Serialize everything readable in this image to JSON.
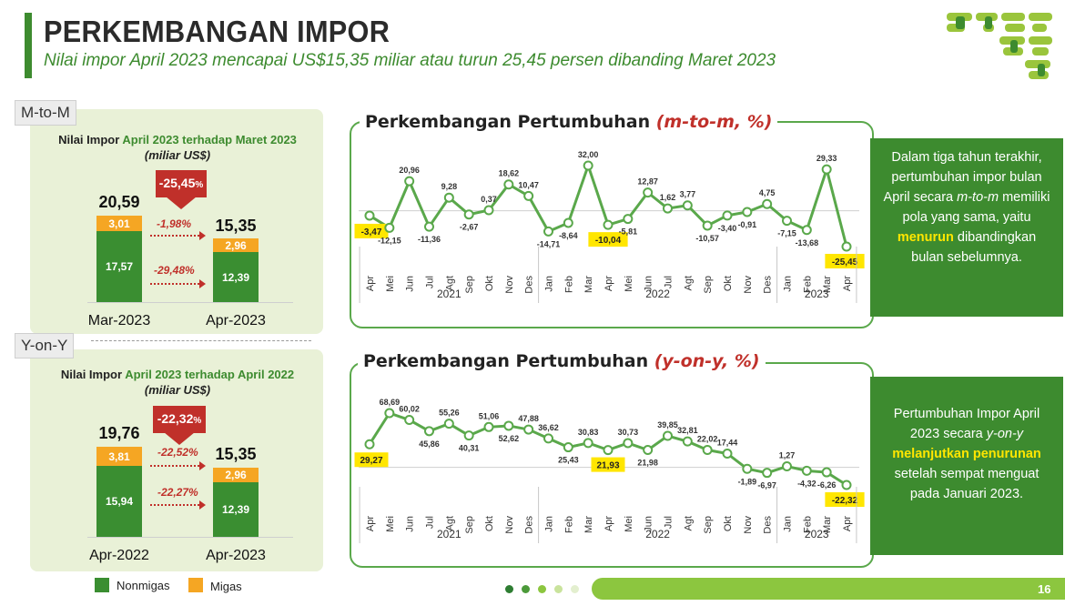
{
  "header": {
    "title": "PERKEMBANGAN IMPOR",
    "subtitle": "Nilai impor April 2023 mencapai US$15,35 miliar atau turun 25,45 persen dibanding Maret 2023"
  },
  "colors": {
    "nonmigas": "#3a8e31",
    "migas": "#f5a623",
    "accent": "#3d8b2f",
    "negative": "#c0302a",
    "highlight": "#ffe600"
  },
  "mtom_panel": {
    "tab": "M-to-M",
    "head_prefix": "Nilai Impor",
    "head_highlight": "April 2023 terhadap Maret 2023",
    "unit": "(miliar US$)",
    "badge_value": "-25,45",
    "badge_unit": "%",
    "bars": [
      {
        "label": "Mar-2023",
        "total": "20,59",
        "migas": "3,01",
        "nonmigas": "17,57"
      },
      {
        "label": "Apr-2023",
        "total": "15,35",
        "migas": "2,96",
        "nonmigas": "12,39"
      }
    ],
    "migas_change": "-1,98%",
    "nonmigas_change": "-29,48%"
  },
  "yony_panel": {
    "tab": "Y-on-Y",
    "head_prefix": "Nilai Impor",
    "head_highlight": "April 2023 terhadap April 2022",
    "unit": "(miliar US$)",
    "badge_value": "-22,32",
    "badge_unit": "%",
    "bars": [
      {
        "label": "Apr-2022",
        "total": "19,76",
        "migas": "3,81",
        "nonmigas": "15,94"
      },
      {
        "label": "Apr-2023",
        "total": "15,35",
        "migas": "2,96",
        "nonmigas": "12,39"
      }
    ],
    "migas_change": "-22,52%",
    "nonmigas_change": "-22,27%"
  },
  "legend": {
    "nonmigas": "Nonmigas",
    "migas": "Migas"
  },
  "note_mtom": {
    "part1": "Dalam tiga tahun terakhir, pertumbuhan impor bulan April secara",
    "italic": "m-to-m",
    "part2": "memiliki pola yang sama, yaitu",
    "highlight": "menurun",
    "part3": "dibandingkan bulan sebelumnya."
  },
  "note_yony": {
    "part1": "Pertumbuhan Impor April 2023 secara",
    "italic": "y-on-y",
    "highlight": "melanjutkan penurunan",
    "part2": "setelah sempat menguat pada Januari 2023."
  },
  "chart_titles": {
    "mtom_main": "Perkembangan Pertumbuhan",
    "mtom_unit": "(m-to-m, %)",
    "yony_main": "Perkembangan Pertumbuhan",
    "yony_unit": "(y-on-y, %)"
  },
  "chart_data": [
    {
      "type": "line",
      "title": "Perkembangan Pertumbuhan (m-to-m, %)",
      "x": [
        "Apr",
        "Mei",
        "Jun",
        "Jul",
        "Agt",
        "Sep",
        "Okt",
        "Nov",
        "Des",
        "Jan",
        "Feb",
        "Mar",
        "Apr",
        "Mei",
        "Jun",
        "Jul",
        "Agt",
        "Sep",
        "Okt",
        "Nov",
        "Des",
        "Jan",
        "Feb",
        "Mar",
        "Apr"
      ],
      "year_groups": [
        {
          "label": "2021",
          "count": 9
        },
        {
          "label": "2022",
          "count": 12
        },
        {
          "label": "2023",
          "count": 4
        }
      ],
      "values": [
        -3.47,
        -12.15,
        20.96,
        -11.36,
        9.28,
        -2.67,
        0.37,
        18.62,
        10.47,
        -14.71,
        -8.64,
        32.0,
        -10.04,
        -5.81,
        12.87,
        1.62,
        3.77,
        -10.57,
        -3.4,
        -0.91,
        4.75,
        -7.15,
        -13.68,
        29.33,
        -25.45
      ],
      "labels": [
        "-3,47",
        "-12,15",
        "20,96",
        "-11,36",
        "9,28",
        "-2,67",
        "0,37",
        "18,62",
        "10,47",
        "-14,71",
        "-8,64",
        "32,00",
        "-10,04",
        "-5,81",
        "12,87",
        "1,62",
        "3,77",
        "-10,57",
        "-3,40",
        "-0,91",
        "4,75",
        "-7,15",
        "-13,68",
        "29,33",
        "-25,45"
      ],
      "highlighted": [
        0,
        12,
        24
      ]
    },
    {
      "type": "line",
      "title": "Perkembangan Pertumbuhan (y-on-y, %)",
      "x": [
        "Apr",
        "Mei",
        "Jun",
        "Jul",
        "Agt",
        "Sep",
        "Okt",
        "Nov",
        "Des",
        "Jan",
        "Feb",
        "Mar",
        "Apr",
        "Mei",
        "Jun",
        "Jul",
        "Agt",
        "Sep",
        "Okt",
        "Nov",
        "Des",
        "Jan",
        "Feb",
        "Mar",
        "Apr"
      ],
      "year_groups": [
        {
          "label": "2021",
          "count": 9
        },
        {
          "label": "2022",
          "count": 12
        },
        {
          "label": "2023",
          "count": 4
        }
      ],
      "values": [
        29.27,
        68.69,
        60.02,
        45.86,
        55.26,
        40.31,
        51.06,
        52.62,
        47.88,
        36.62,
        25.43,
        30.83,
        21.93,
        30.73,
        21.98,
        39.85,
        32.81,
        22.02,
        17.44,
        -1.89,
        -6.97,
        1.27,
        -4.32,
        -6.26,
        -22.32
      ],
      "labels": [
        "29,27",
        "68,69",
        "60,02",
        "45,86",
        "55,26",
        "40,31",
        "51,06",
        "52,62",
        "47,88",
        "36,62",
        "25,43",
        "30,83",
        "21,93",
        "30,73",
        "21,98",
        "39,85",
        "32,81",
        "22,02",
        "17,44",
        "-1,89",
        "-6,97",
        "1,27",
        "-4,32",
        "-6,26",
        "-22,32"
      ],
      "highlighted": [
        0,
        12,
        24
      ]
    }
  ],
  "footer": {
    "page_number": "16"
  }
}
